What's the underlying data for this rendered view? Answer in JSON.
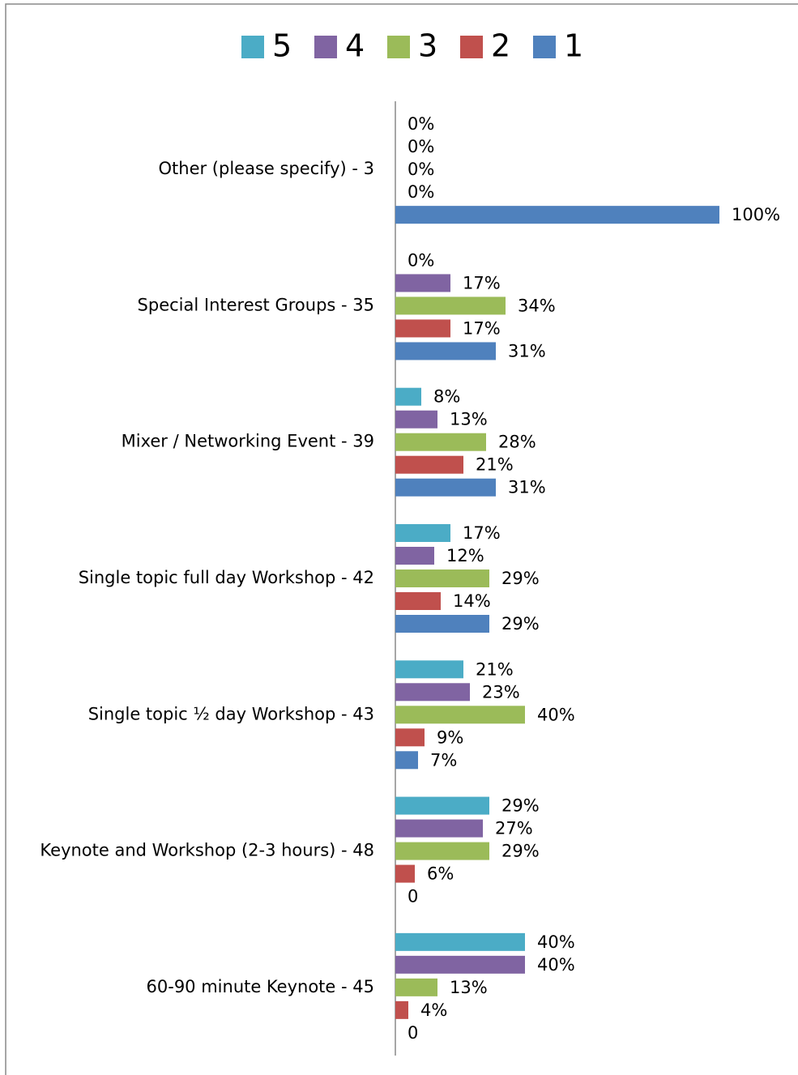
{
  "chart_data": {
    "type": "bar",
    "orientation": "horizontal",
    "categories": [
      "Other (please specify) - 3",
      "Special Interest Groups - 35",
      "Mixer / Networking Event - 39",
      "Single topic full day Workshop - 42",
      "Single topic ½ day Workshop - 43",
      "Keynote and Workshop (2-3 hours) - 48",
      "60-90 minute Keynote - 45"
    ],
    "series": [
      {
        "name": "5",
        "color": "#4bacc6",
        "values": [
          0,
          0,
          8,
          17,
          21,
          29,
          40
        ],
        "value_labels": [
          "0%",
          "0%",
          "8%",
          "17%",
          "21%",
          "29%",
          "40%"
        ]
      },
      {
        "name": "4",
        "color": "#8064a2",
        "values": [
          0,
          17,
          13,
          12,
          23,
          27,
          40
        ],
        "value_labels": [
          "0%",
          "17%",
          "13%",
          "12%",
          "23%",
          "27%",
          "40%"
        ]
      },
      {
        "name": "3",
        "color": "#9bbb59",
        "values": [
          0,
          34,
          28,
          29,
          40,
          29,
          13
        ],
        "value_labels": [
          "0%",
          "34%",
          "28%",
          "29%",
          "40%",
          "29%",
          "13%"
        ]
      },
      {
        "name": "2",
        "color": "#c0504d",
        "values": [
          0,
          17,
          21,
          14,
          9,
          6,
          4
        ],
        "value_labels": [
          "0%",
          "17%",
          "21%",
          "14%",
          "9%",
          "6%",
          "4%"
        ]
      },
      {
        "name": "1",
        "color": "#4f81bd",
        "values": [
          100,
          31,
          31,
          29,
          7,
          0,
          0
        ],
        "value_labels": [
          "100%",
          "31%",
          "31%",
          "29%",
          "7%",
          "0",
          "0"
        ]
      }
    ],
    "legend": "top"
  }
}
